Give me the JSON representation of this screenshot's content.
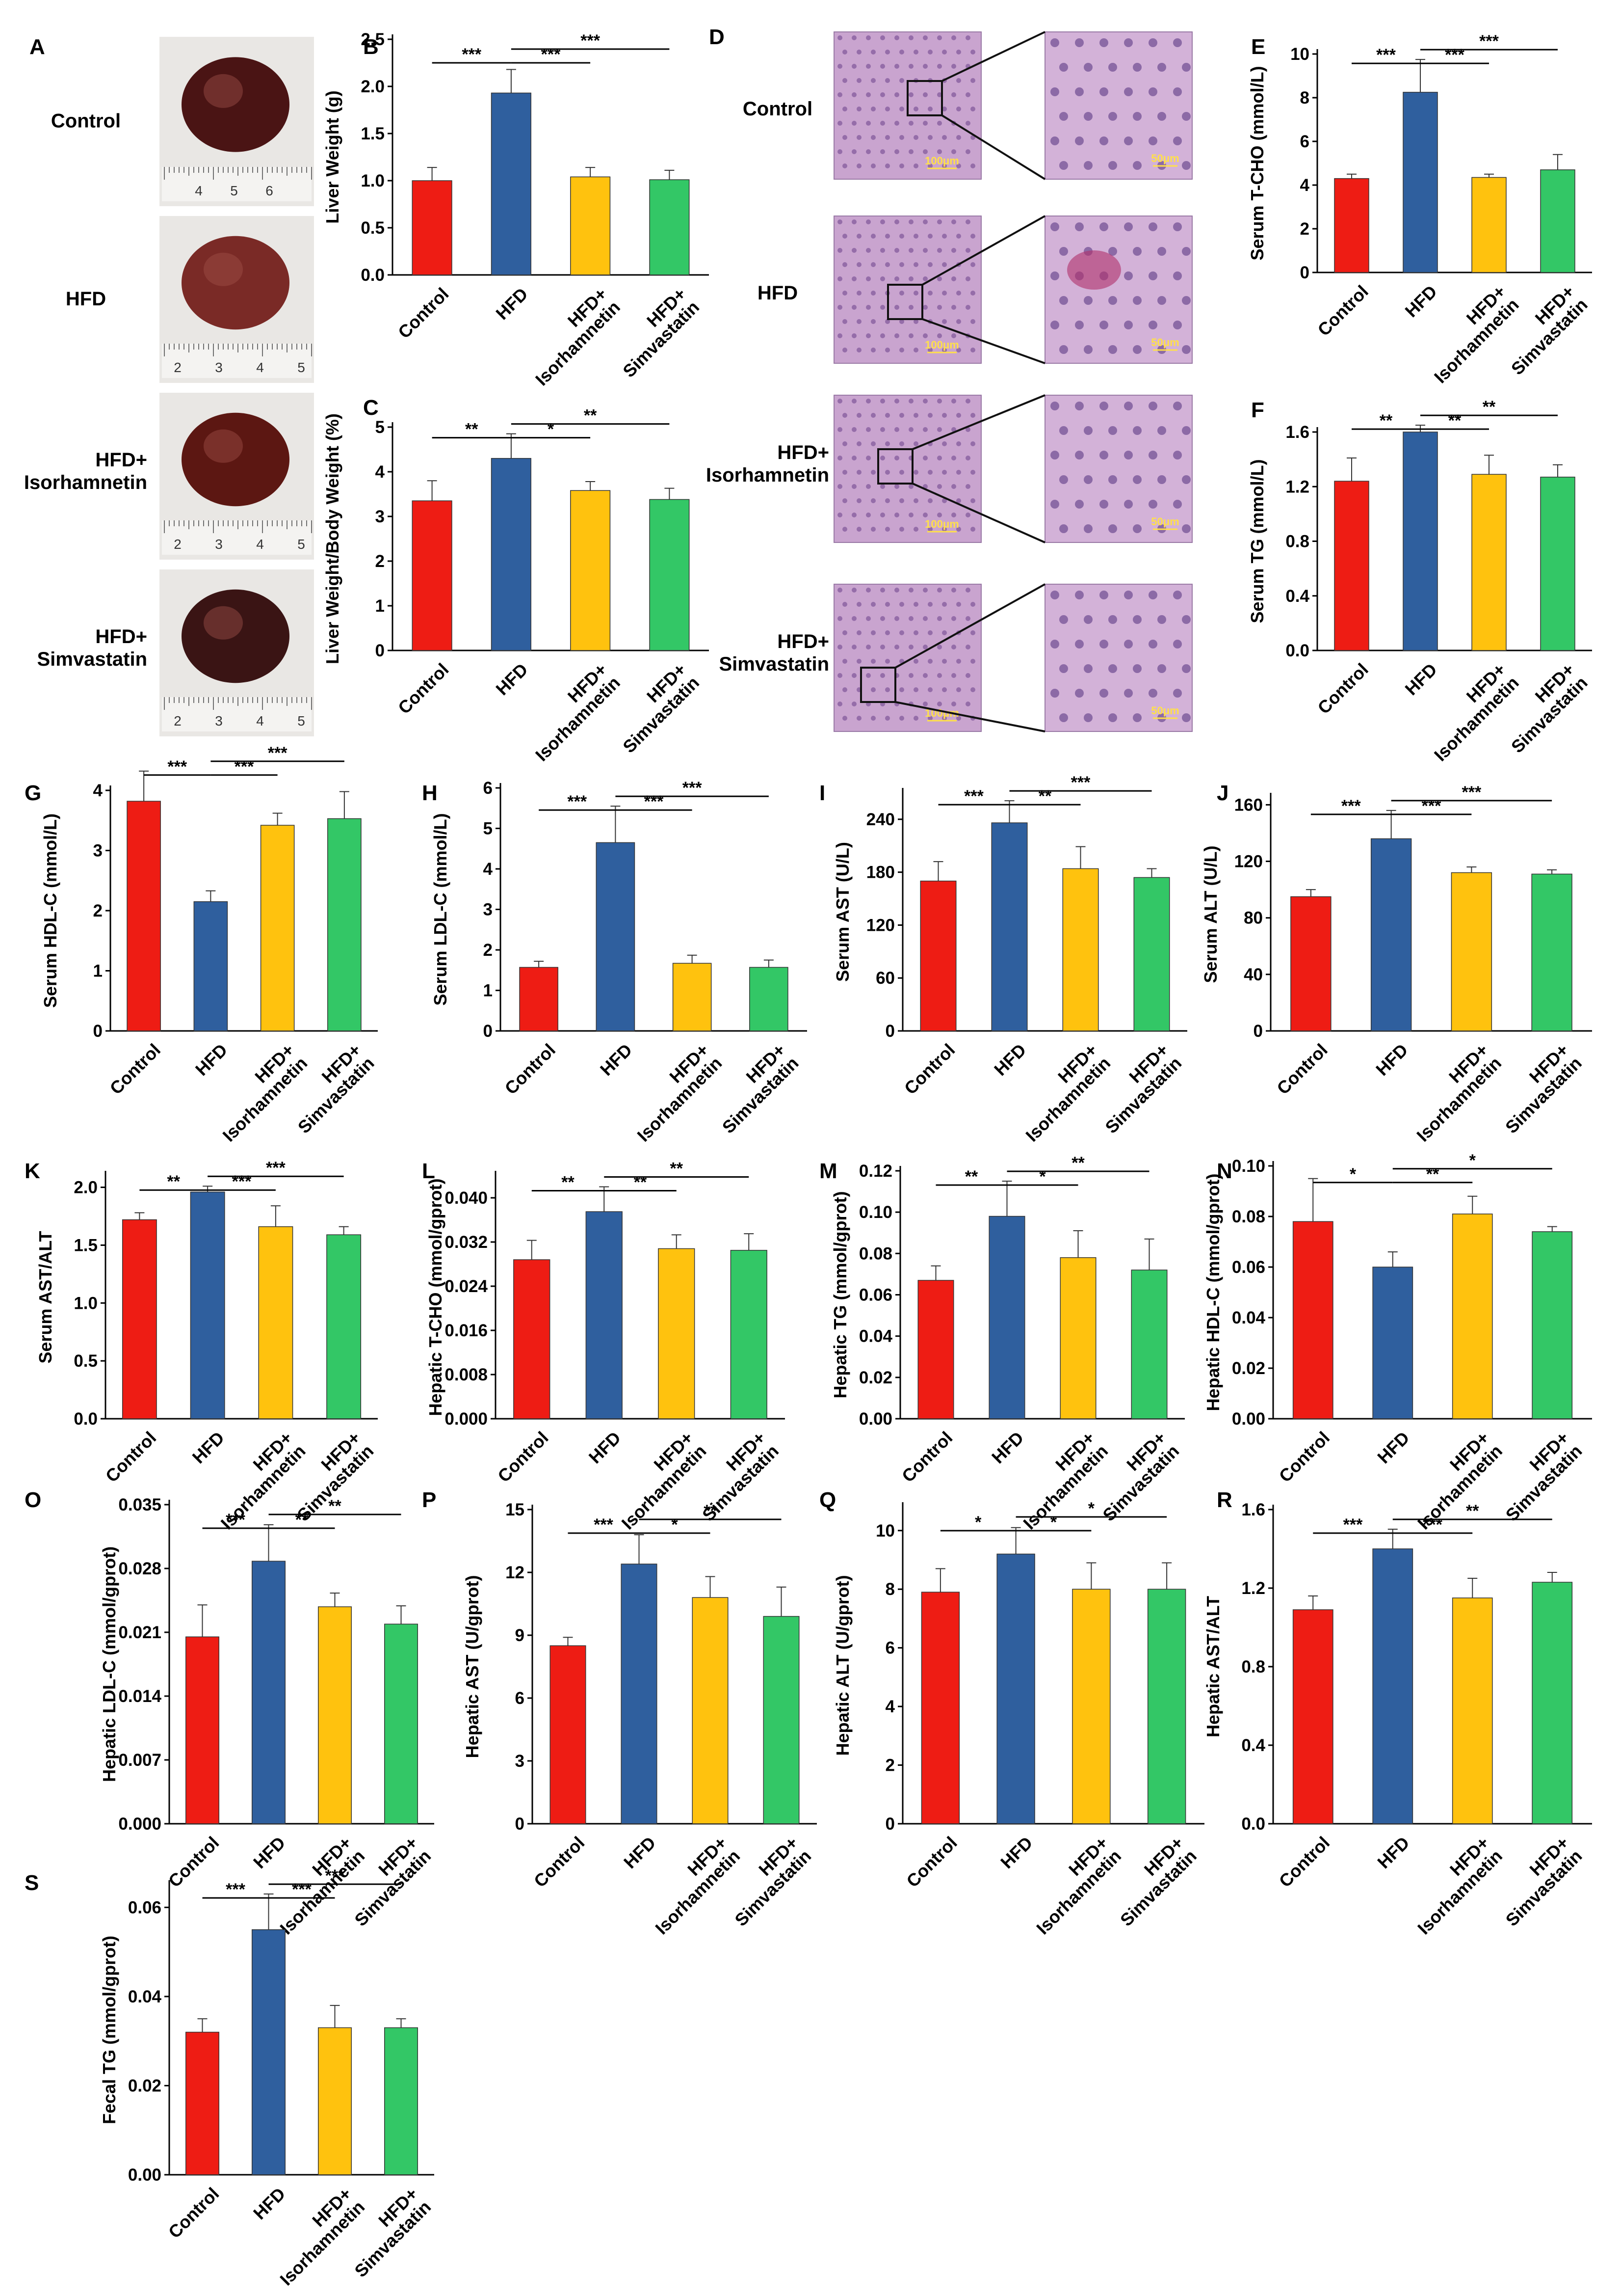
{
  "colors": {
    "Control": "#ee1c14",
    "HFD": "#2f5f9e",
    "HFD+ Isorhamnetin": "#ffc20e",
    "HFD+ Simvastatin": "#33c766"
  },
  "groups": [
    {
      "key": "Control",
      "lines": [
        "Control"
      ]
    },
    {
      "key": "HFD",
      "lines": [
        "HFD"
      ]
    },
    {
      "key": "HFD+ Isorhamnetin",
      "lines": [
        "HFD+",
        "Isorhamnetin"
      ]
    },
    {
      "key": "HFD+ Simvastatin",
      "lines": [
        "HFD+",
        "Simvastatin"
      ]
    }
  ],
  "photos": {
    "panel": "A",
    "ruler_labels": [
      [
        "4",
        "5",
        "6"
      ],
      [
        "2",
        "3",
        "4",
        "5"
      ],
      [
        "2",
        "3",
        "4",
        "5"
      ],
      [
        "2",
        "3",
        "4",
        "5"
      ]
    ]
  },
  "histology": {
    "panel": "D",
    "scale_low": "100μm",
    "scale_high": "50μm"
  },
  "chart_data": [
    {
      "label": "B",
      "type": "bar",
      "ylabel": "Liver Weight (g)",
      "ylim": [
        0,
        2.5
      ],
      "ticks": [
        "0.0",
        "0.5",
        "1.0",
        "1.5",
        "2.0",
        "2.5"
      ],
      "values": [
        1.0,
        1.93,
        1.04,
        1.01
      ],
      "errors": [
        0.14,
        0.25,
        0.1,
        0.1
      ],
      "sig": [
        {
          "from": 0,
          "to": 1,
          "label": "***",
          "row": 0
        },
        {
          "from": 1,
          "to": 2,
          "label": "***",
          "row": 0
        },
        {
          "from": 1,
          "to": 3,
          "label": "***",
          "row": 1
        }
      ]
    },
    {
      "label": "C",
      "type": "bar",
      "ylabel": "Liver Weight/Body Weight (%)",
      "ylim": [
        0,
        5
      ],
      "ticks": [
        "0",
        "1",
        "2",
        "3",
        "4",
        "5"
      ],
      "values": [
        3.35,
        4.3,
        3.58,
        3.38
      ],
      "errors": [
        0.45,
        0.55,
        0.2,
        0.25
      ],
      "sig": [
        {
          "from": 0,
          "to": 1,
          "label": "**",
          "row": 0
        },
        {
          "from": 1,
          "to": 2,
          "label": "*",
          "row": 0
        },
        {
          "from": 1,
          "to": 3,
          "label": "**",
          "row": 1
        }
      ]
    },
    {
      "label": "E",
      "type": "bar",
      "ylabel": "Serum T-CHO (mmol/L)",
      "ylim": [
        0,
        10
      ],
      "ticks": [
        "0",
        "2",
        "4",
        "6",
        "8",
        "10"
      ],
      "values": [
        4.3,
        8.25,
        4.35,
        4.7
      ],
      "errors": [
        0.2,
        1.5,
        0.15,
        0.7
      ],
      "sig": [
        {
          "from": 0,
          "to": 1,
          "label": "***",
          "row": 0
        },
        {
          "from": 1,
          "to": 2,
          "label": "***",
          "row": 0
        },
        {
          "from": 1,
          "to": 3,
          "label": "***",
          "row": 1
        }
      ]
    },
    {
      "label": "F",
      "type": "bar",
      "ylabel": "Serum TG (mmol/L)",
      "ylim": [
        0,
        1.6
      ],
      "ticks": [
        "0.0",
        "0.4",
        "0.8",
        "1.2",
        "1.6"
      ],
      "values": [
        1.24,
        1.6,
        1.29,
        1.27
      ],
      "errors": [
        0.17,
        0.05,
        0.14,
        0.09
      ],
      "sig": [
        {
          "from": 0,
          "to": 1,
          "label": "**",
          "row": 0
        },
        {
          "from": 1,
          "to": 2,
          "label": "**",
          "row": 0
        },
        {
          "from": 1,
          "to": 3,
          "label": "**",
          "row": 1
        }
      ]
    },
    {
      "label": "G",
      "type": "bar",
      "ylabel": "Serum HDL-C (mmol/L)",
      "ylim": [
        0,
        4
      ],
      "ticks": [
        "0",
        "1",
        "2",
        "3",
        "4"
      ],
      "values": [
        3.82,
        2.15,
        3.42,
        3.53
      ],
      "errors": [
        0.5,
        0.18,
        0.2,
        0.45
      ],
      "sig": [
        {
          "from": 0,
          "to": 1,
          "label": "***",
          "row": 0
        },
        {
          "from": 1,
          "to": 2,
          "label": "***",
          "row": 0
        },
        {
          "from": 1,
          "to": 3,
          "label": "***",
          "row": 1
        }
      ]
    },
    {
      "label": "H",
      "type": "bar",
      "ylabel": "Serum LDL-C (mmol/L)",
      "ylim": [
        0,
        6
      ],
      "ticks": [
        "0",
        "1",
        "2",
        "3",
        "4",
        "5",
        "6"
      ],
      "values": [
        1.57,
        4.65,
        1.67,
        1.57
      ],
      "errors": [
        0.15,
        0.9,
        0.2,
        0.18
      ],
      "sig": [
        {
          "from": 0,
          "to": 1,
          "label": "***",
          "row": 0
        },
        {
          "from": 1,
          "to": 2,
          "label": "***",
          "row": 0
        },
        {
          "from": 1,
          "to": 3,
          "label": "***",
          "row": 1
        }
      ]
    },
    {
      "label": "I",
      "type": "bar",
      "ylabel": "Serum AST (U/L)",
      "ylim": [
        0,
        270
      ],
      "ticks": [
        "0",
        "60",
        "120",
        "180",
        "240"
      ],
      "values": [
        170,
        236,
        184,
        174
      ],
      "errors": [
        22,
        25,
        25,
        10
      ],
      "sig": [
        {
          "from": 0,
          "to": 1,
          "label": "***",
          "row": 0
        },
        {
          "from": 1,
          "to": 2,
          "label": "**",
          "row": 0
        },
        {
          "from": 1,
          "to": 3,
          "label": "***",
          "row": 1
        }
      ]
    },
    {
      "label": "J",
      "type": "bar",
      "ylabel": "Serum ALT (U/L)",
      "ylim": [
        0,
        165
      ],
      "ticks": [
        "0",
        "40",
        "80",
        "120",
        "160"
      ],
      "values": [
        95,
        136,
        112,
        111
      ],
      "errors": [
        5,
        20,
        4,
        3
      ],
      "sig": [
        {
          "from": 0,
          "to": 1,
          "label": "***",
          "row": 0
        },
        {
          "from": 1,
          "to": 2,
          "label": "***",
          "row": 0
        },
        {
          "from": 1,
          "to": 3,
          "label": "***",
          "row": 1
        }
      ]
    },
    {
      "label": "K",
      "type": "bar",
      "ylabel": "Serum AST/ALT",
      "ylim": [
        0,
        2.1
      ],
      "ticks": [
        "0.0",
        "0.5",
        "1.0",
        "1.5",
        "2.0"
      ],
      "values": [
        1.72,
        1.96,
        1.66,
        1.59
      ],
      "errors": [
        0.06,
        0.05,
        0.18,
        0.07
      ],
      "sig": [
        {
          "from": 0,
          "to": 1,
          "label": "**",
          "row": 0
        },
        {
          "from": 1,
          "to": 2,
          "label": "***",
          "row": 0
        },
        {
          "from": 1,
          "to": 3,
          "label": "***",
          "row": 1
        }
      ]
    },
    {
      "label": "L",
      "type": "bar",
      "ylabel": "Hepatic T-CHO (mmol/gprot)",
      "ylim": [
        0,
        0.044
      ],
      "ticks": [
        "0.000",
        "0.008",
        "0.016",
        "0.024",
        "0.032",
        "0.040"
      ],
      "values": [
        0.0288,
        0.0375,
        0.0308,
        0.0305
      ],
      "errors": [
        0.0035,
        0.0045,
        0.0025,
        0.003
      ],
      "sig": [
        {
          "from": 0,
          "to": 1,
          "label": "**",
          "row": 0
        },
        {
          "from": 1,
          "to": 2,
          "label": "**",
          "row": 0
        },
        {
          "from": 1,
          "to": 3,
          "label": "**",
          "row": 1
        }
      ]
    },
    {
      "label": "M",
      "type": "bar",
      "ylabel": "Hepatic TG (mmol/gprot)",
      "ylim": [
        0,
        0.12
      ],
      "ticks": [
        "0.00",
        "0.02",
        "0.04",
        "0.06",
        "0.08",
        "0.10",
        "0.12"
      ],
      "values": [
        0.067,
        0.098,
        0.078,
        0.072
      ],
      "errors": [
        0.007,
        0.017,
        0.013,
        0.015
      ],
      "sig": [
        {
          "from": 0,
          "to": 1,
          "label": "**",
          "row": 0
        },
        {
          "from": 1,
          "to": 2,
          "label": "*",
          "row": 0
        },
        {
          "from": 1,
          "to": 3,
          "label": "**",
          "row": 1
        }
      ]
    },
    {
      "label": "N",
      "type": "bar",
      "ylabel": "Hepatic HDL-C (mmol/gprot)",
      "ylim": [
        0,
        0.1
      ],
      "ticks": [
        "0.00",
        "0.02",
        "0.04",
        "0.06",
        "0.08",
        "0.10"
      ],
      "values": [
        0.078,
        0.06,
        0.081,
        0.074
      ],
      "errors": [
        0.017,
        0.006,
        0.007,
        0.002
      ],
      "sig": [
        {
          "from": 0,
          "to": 1,
          "label": "*",
          "row": 0
        },
        {
          "from": 1,
          "to": 2,
          "label": "**",
          "row": 0
        },
        {
          "from": 1,
          "to": 3,
          "label": "*",
          "row": 1
        }
      ]
    },
    {
      "label": "O",
      "type": "bar",
      "ylabel": "Hepatic LDL-C (mmol/gprot)",
      "ylim": [
        0,
        0.035
      ],
      "ticks": [
        "0.000",
        "0.007",
        "0.014",
        "0.021",
        "0.028",
        "0.035"
      ],
      "values": [
        0.0205,
        0.0288,
        0.0238,
        0.0219
      ],
      "errors": [
        0.0035,
        0.004,
        0.0015,
        0.002
      ],
      "sig": [
        {
          "from": 0,
          "to": 1,
          "label": "***",
          "row": 0
        },
        {
          "from": 1,
          "to": 2,
          "label": "**",
          "row": 0
        },
        {
          "from": 1,
          "to": 3,
          "label": "**",
          "row": 1
        }
      ]
    },
    {
      "label": "P",
      "type": "bar",
      "ylabel": "Hepatic AST (U/gprot)",
      "ylim": [
        0,
        15
      ],
      "ticks": [
        "0",
        "3",
        "6",
        "9",
        "12",
        "15"
      ],
      "values": [
        8.5,
        12.4,
        10.8,
        9.9
      ],
      "errors": [
        0.4,
        1.4,
        1.0,
        1.4
      ],
      "sig": [
        {
          "from": 0,
          "to": 1,
          "label": "***",
          "row": 0
        },
        {
          "from": 1,
          "to": 2,
          "label": "*",
          "row": 0
        },
        {
          "from": 1,
          "to": 3,
          "label": "**",
          "row": 1
        }
      ]
    },
    {
      "label": "Q",
      "type": "bar",
      "ylabel": "Hepatic ALT (U/gprot)",
      "ylim": [
        0,
        10.8
      ],
      "ticks": [
        "0",
        "2",
        "4",
        "6",
        "8",
        "10"
      ],
      "values": [
        7.9,
        9.2,
        8.0,
        8.0
      ],
      "errors": [
        0.8,
        0.9,
        0.9,
        0.9
      ],
      "sig": [
        {
          "from": 0,
          "to": 1,
          "label": "*",
          "row": 0
        },
        {
          "from": 1,
          "to": 2,
          "label": "*",
          "row": 0
        },
        {
          "from": 1,
          "to": 3,
          "label": "*",
          "row": 1
        }
      ]
    },
    {
      "label": "R",
      "type": "bar",
      "ylabel": "Hepatic AST/ALT",
      "ylim": [
        0,
        1.6
      ],
      "ticks": [
        "0.0",
        "0.4",
        "0.8",
        "1.2",
        "1.6"
      ],
      "values": [
        1.09,
        1.4,
        1.15,
        1.23
      ],
      "errors": [
        0.07,
        0.1,
        0.1,
        0.05
      ],
      "sig": [
        {
          "from": 0,
          "to": 1,
          "label": "***",
          "row": 0
        },
        {
          "from": 1,
          "to": 2,
          "label": "***",
          "row": 0
        },
        {
          "from": 1,
          "to": 3,
          "label": "**",
          "row": 1
        }
      ]
    },
    {
      "label": "S",
      "type": "bar",
      "ylabel": "Fecal TG (mmol/gprot)",
      "ylim": [
        0,
        0.065
      ],
      "ticks": [
        "0.00",
        "0.02",
        "0.04",
        "0.06"
      ],
      "values": [
        0.032,
        0.055,
        0.033,
        0.033
      ],
      "errors": [
        0.003,
        0.008,
        0.005,
        0.002
      ],
      "sig": [
        {
          "from": 0,
          "to": 1,
          "label": "***",
          "row": 0
        },
        {
          "from": 1,
          "to": 2,
          "label": "***",
          "row": 0
        },
        {
          "from": 1,
          "to": 3,
          "label": "***",
          "row": 1
        }
      ]
    }
  ]
}
